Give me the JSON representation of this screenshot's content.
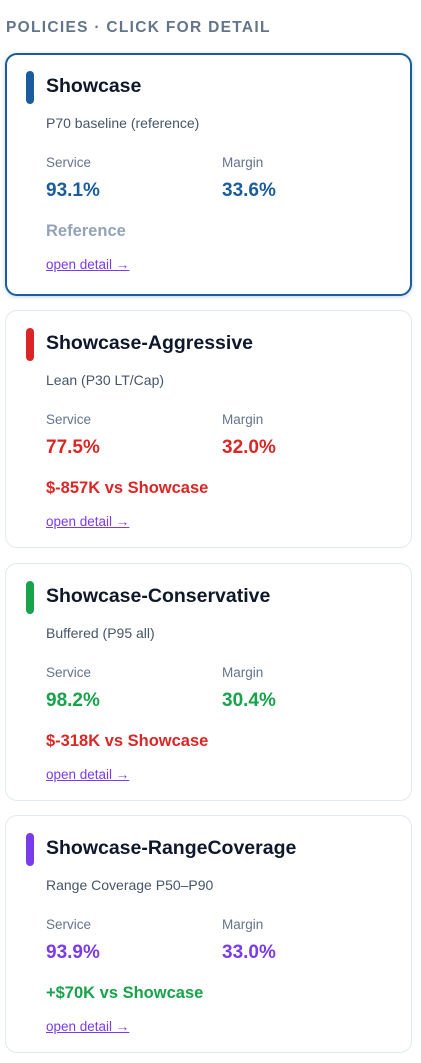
{
  "header": {
    "title": "POLICIES · CLICK FOR DETAIL"
  },
  "policies": [
    {
      "name": "Showcase",
      "description": "P70 baseline (reference)",
      "service_label": "Service",
      "service": "93.1%",
      "margin_label": "Margin",
      "margin": "33.6%",
      "delta": "Reference",
      "link": "open detail →",
      "selected": true,
      "accent_color": "#1a5c9e",
      "value_color": "#1a5c9e",
      "delta_color": "#94a3b8"
    },
    {
      "name": "Showcase-Aggressive",
      "description": "Lean (P30 LT/Cap)",
      "service_label": "Service",
      "service": "77.5%",
      "margin_label": "Margin",
      "margin": "32.0%",
      "delta": "$-857K vs Showcase",
      "link": "open detail →",
      "selected": false,
      "accent_color": "#dc2626",
      "value_color": "#dc2626",
      "delta_color": "#dc2626"
    },
    {
      "name": "Showcase-Conservative",
      "description": "Buffered (P95 all)",
      "service_label": "Service",
      "service": "98.2%",
      "margin_label": "Margin",
      "margin": "30.4%",
      "delta": "$-318K vs Showcase",
      "link": "open detail →",
      "selected": false,
      "accent_color": "#16a34a",
      "value_color": "#16a34a",
      "delta_color": "#dc2626"
    },
    {
      "name": "Showcase-RangeCoverage",
      "description": "Range Coverage P50–P90",
      "service_label": "Service",
      "service": "93.9%",
      "margin_label": "Margin",
      "margin": "33.0%",
      "delta": "+$70K vs Showcase",
      "link": "open detail →",
      "selected": false,
      "accent_color": "#7c3aed",
      "value_color": "#7c3aed",
      "delta_color": "#16a34a"
    }
  ]
}
